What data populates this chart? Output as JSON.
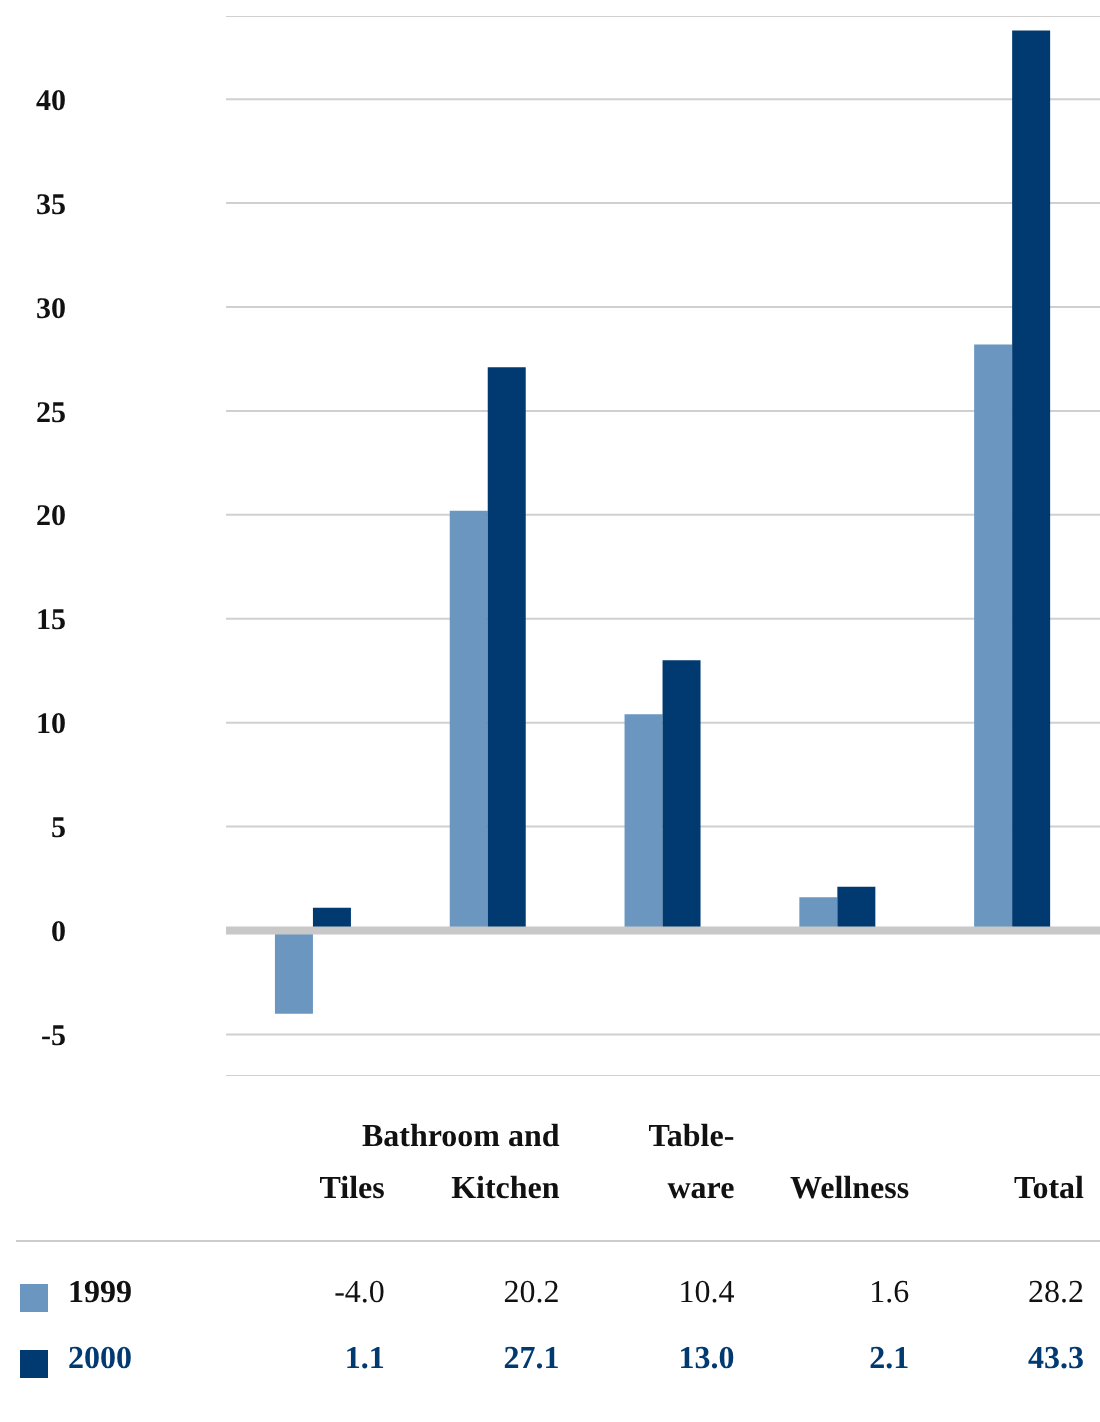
{
  "chart_data": {
    "type": "bar",
    "categories": [
      "Tiles",
      "Bathroom and Kitchen",
      "Table-ware",
      "Wellness",
      "Total"
    ],
    "series": [
      {
        "name": "1999",
        "color": "#6a96c0",
        "values": [
          -4.0,
          20.2,
          10.4,
          1.6,
          28.2
        ],
        "value_labels": [
          "-4.0",
          "20.2",
          "10.4",
          "1.6",
          "28.2"
        ]
      },
      {
        "name": "2000",
        "color": "#003a70",
        "values": [
          1.1,
          27.1,
          13.0,
          2.1,
          43.3
        ],
        "value_labels": [
          "1.1",
          "27.1",
          "13.0",
          "2.1",
          "43.3"
        ]
      }
    ],
    "ylim": [
      -7,
      44
    ],
    "yticks": [
      -5,
      0,
      5,
      10,
      15,
      20,
      25,
      30,
      35,
      40
    ],
    "grid": "y",
    "legend": "bottom"
  }
}
